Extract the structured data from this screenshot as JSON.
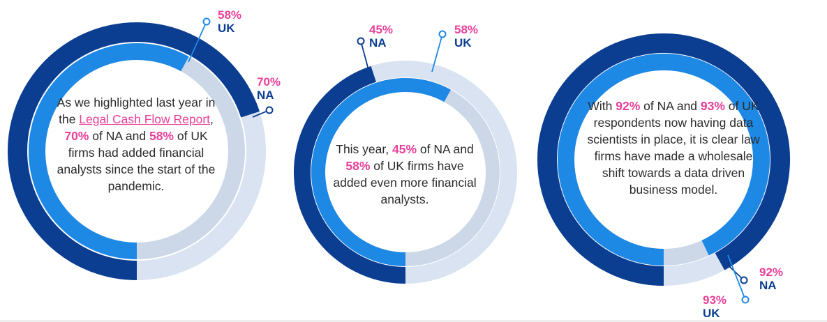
{
  "colors": {
    "outer_track": "#d9e3f1",
    "inner_track": "#ccd8e8",
    "na_arc": "#0b3d91",
    "uk_arc": "#1e88e5",
    "percent_text": "#e8409a",
    "region_text": "#0b3d91",
    "body_text": "#2b2b2b"
  },
  "chart_data": [
    {
      "type": "radial-progress",
      "series": [
        {
          "name": "NA",
          "value": 70
        },
        {
          "name": "UK",
          "value": 58
        }
      ],
      "labels": [
        {
          "value": "58%",
          "region": "UK"
        },
        {
          "value": "70%",
          "region": "NA"
        }
      ],
      "text": {
        "p1": "As we highlighted last year in the ",
        "link": "Legal Cash Flow Report",
        "p2": ", ",
        "b1": "70%",
        "p3": " of NA and ",
        "b2": "58%",
        "p4": " of UK firms had added financial analysts since the start of the pandemic."
      }
    },
    {
      "type": "radial-progress",
      "series": [
        {
          "name": "NA",
          "value": 45
        },
        {
          "name": "UK",
          "value": 58
        }
      ],
      "labels": [
        {
          "value": "45%",
          "region": "NA"
        },
        {
          "value": "58%",
          "region": "UK"
        }
      ],
      "text": {
        "p1": "This year, ",
        "b1": "45%",
        "p2": " of NA and ",
        "b2": "58%",
        "p3": " of UK firms have added even more financial analysts."
      }
    },
    {
      "type": "radial-progress",
      "series": [
        {
          "name": "NA",
          "value": 92
        },
        {
          "name": "UK",
          "value": 93
        }
      ],
      "labels": [
        {
          "value": "92%",
          "region": "NA"
        },
        {
          "value": "93%",
          "region": "UK"
        }
      ],
      "text": {
        "p1": "With ",
        "b1": "92%",
        "p2": " of NA and ",
        "b2": "93%",
        "p3": " of UK respondents now having data scientists in place, it is clear law firms have made a wholesale shift towards a data driven business model."
      }
    }
  ]
}
